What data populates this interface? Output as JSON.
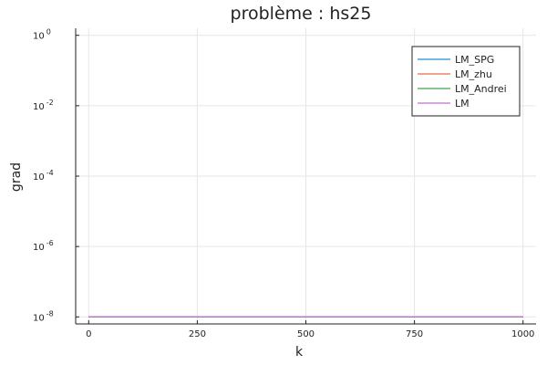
{
  "chart_data": {
    "type": "line",
    "title": "problème : hs25",
    "xlabel": "k",
    "ylabel": "grad",
    "xlim": [
      -30,
      1030
    ],
    "ylim_log10": [
      -8.2,
      0.2
    ],
    "yscale": "log",
    "grid": true,
    "legend_position": "top-right",
    "x_ticks": [
      0,
      250,
      500,
      750,
      1000
    ],
    "y_ticks": [
      {
        "base": "10",
        "exp": "0",
        "value": 1
      },
      {
        "base": "10",
        "exp": "-2",
        "value": 0.01
      },
      {
        "base": "10",
        "exp": "-4",
        "value": 0.0001
      },
      {
        "base": "10",
        "exp": "-6",
        "value": 1e-06
      },
      {
        "base": "10",
        "exp": "-8",
        "value": 1e-08
      }
    ],
    "series": [
      {
        "name": "LM_SPG",
        "color": "#1f8fd6",
        "x": [
          0,
          1000
        ],
        "y": [
          1e-08,
          1e-08
        ]
      },
      {
        "name": "LM_zhu",
        "color": "#e26f46",
        "x": [
          0,
          1000
        ],
        "y": [
          1e-08,
          1e-08
        ]
      },
      {
        "name": "LM_Andrei",
        "color": "#3ea44e",
        "x": [
          0,
          1000
        ],
        "y": [
          1e-08,
          1e-08
        ]
      },
      {
        "name": "LM",
        "color": "#c271d2",
        "x": [
          0,
          1000
        ],
        "y": [
          1e-08,
          1e-08
        ]
      }
    ]
  }
}
